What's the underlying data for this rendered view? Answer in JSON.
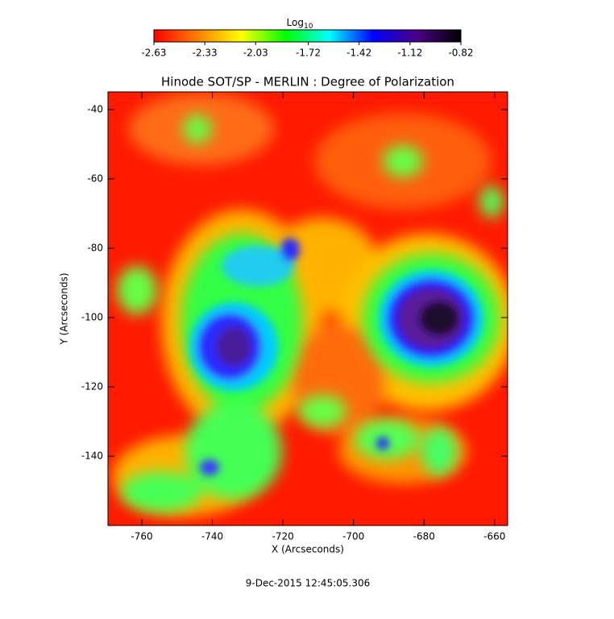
{
  "chart_data": {
    "type": "image",
    "title": "Hinode SOT/SP - MERLIN : Degree of Polarization",
    "xlabel": "X (Arcseconds)",
    "ylabel": "Y (Arcseconds)",
    "footer": "9-Dec-2015 12:45:05.306",
    "xlim": [
      -769.6,
      -656.3
    ],
    "xticks": [
      -760,
      -740,
      -720,
      -700,
      -680,
      -660
    ],
    "ylim": [
      -160,
      -34.9
    ],
    "yticks": [
      -140,
      -120,
      -100,
      -80,
      -60,
      -40
    ],
    "colorbar": {
      "label": "Log",
      "label_sub": "10",
      "lim": [
        -2.63,
        -0.82
      ],
      "ticks": [
        -2.63,
        -2.33,
        -2.03,
        -1.72,
        -1.42,
        -1.12,
        -0.82
      ],
      "colors": [
        "#ff0000",
        "#ff8000",
        "#ffff00",
        "#00ff00",
        "#00ffff",
        "#0000ff",
        "#4b0082",
        "#000000"
      ]
    }
  }
}
